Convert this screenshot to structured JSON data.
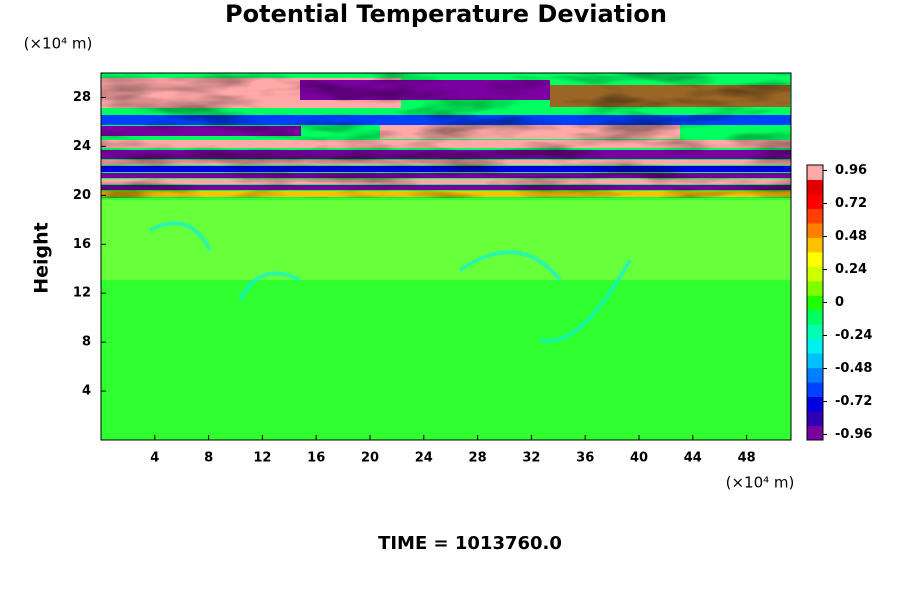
{
  "chart_data": {
    "type": "contour",
    "title": "Potential Temperature Deviation",
    "y_label": "Height",
    "y_unit": "(×10⁴ m)",
    "x_unit": "(×10⁴ m)",
    "annotation": "TIME = 1013760.0",
    "xlim": [
      0,
      51.3
    ],
    "xticks": [
      4,
      8,
      12,
      16,
      20,
      24,
      28,
      32,
      36,
      40,
      44,
      48
    ],
    "ylim": [
      0,
      30
    ],
    "yticks": [
      4,
      8,
      12,
      16,
      20,
      24,
      28
    ],
    "clim": [
      -1,
      1
    ],
    "cticks": [
      0.96,
      0.72,
      0.48,
      0.24,
      0,
      -0.24,
      -0.48,
      -0.72,
      -0.96
    ],
    "colors": [
      "#7a00a0",
      "#3000b0",
      "#0000e0",
      "#0040ff",
      "#0080ff",
      "#00c0ff",
      "#00f0f0",
      "#00ffb0",
      "#00ff60",
      "#20ff00",
      "#80ff00",
      "#d0ff00",
      "#ffff00",
      "#ffc000",
      "#ff8000",
      "#ff4000",
      "#ff0000",
      "#e00000",
      "#ffa8a8"
    ]
  }
}
